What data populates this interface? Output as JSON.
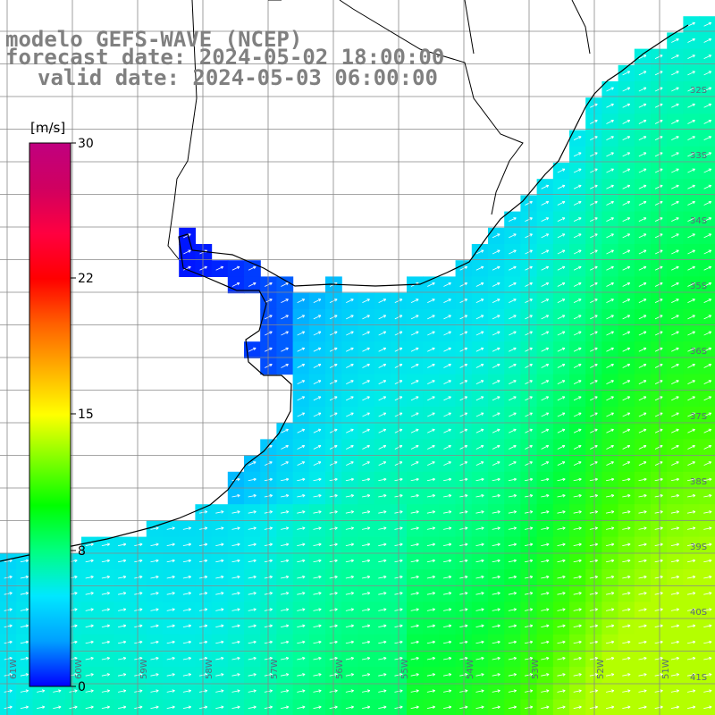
{
  "title": {
    "model": "modelo GEFS-WAVE (NCEP)",
    "forecast": "forecast date: 2024-05-02 18:00:00",
    "valid": "valid date: 2024-05-03 06:00:00"
  },
  "colorbar": {
    "unit": "[m/s]",
    "ticks": [
      "30",
      "22",
      "15",
      "8",
      "0"
    ],
    "colors": [
      "#0000ff",
      "#00a0ff",
      "#00e8ff",
      "#00ff7f",
      "#00ff00",
      "#80ff00",
      "#ffff00",
      "#ffb000",
      "#ff6000",
      "#ff0000",
      "#ff0040",
      "#d00060",
      "#c0007f"
    ]
  },
  "lat_labels": [
    "32S",
    "33S",
    "34S",
    "35S",
    "36S",
    "37S",
    "38S",
    "39S",
    "40S",
    "41S"
  ],
  "lon_labels": [
    "61W",
    "60W",
    "59W",
    "58W",
    "57W",
    "56W",
    "55W",
    "54W",
    "53W",
    "52W",
    "51W"
  ],
  "colors": {
    "grid": "#888888",
    "coast": "#000000",
    "land": "#ffffff",
    "title": "#808080",
    "arrow": "#ffffff"
  }
}
